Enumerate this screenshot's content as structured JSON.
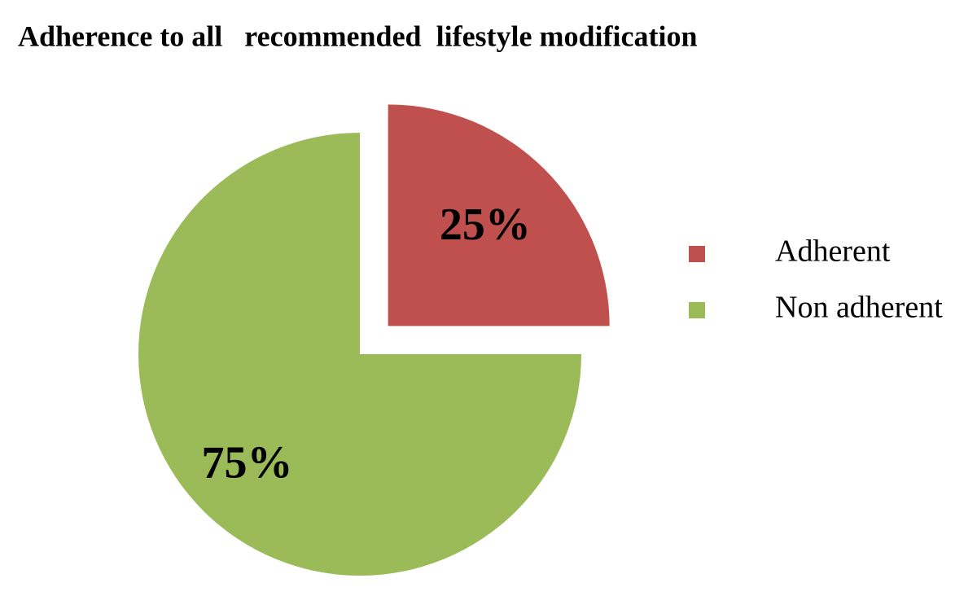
{
  "chart_data": {
    "type": "pie",
    "title": "Adherence to all   recommended  lifestyle modification",
    "categories": [
      "Adherent",
      "Non adherent"
    ],
    "values": [
      25,
      75
    ],
    "value_labels": [
      "25%",
      "75%"
    ],
    "colors": [
      "#c0504d",
      "#9bbb59"
    ],
    "legend": "right"
  }
}
